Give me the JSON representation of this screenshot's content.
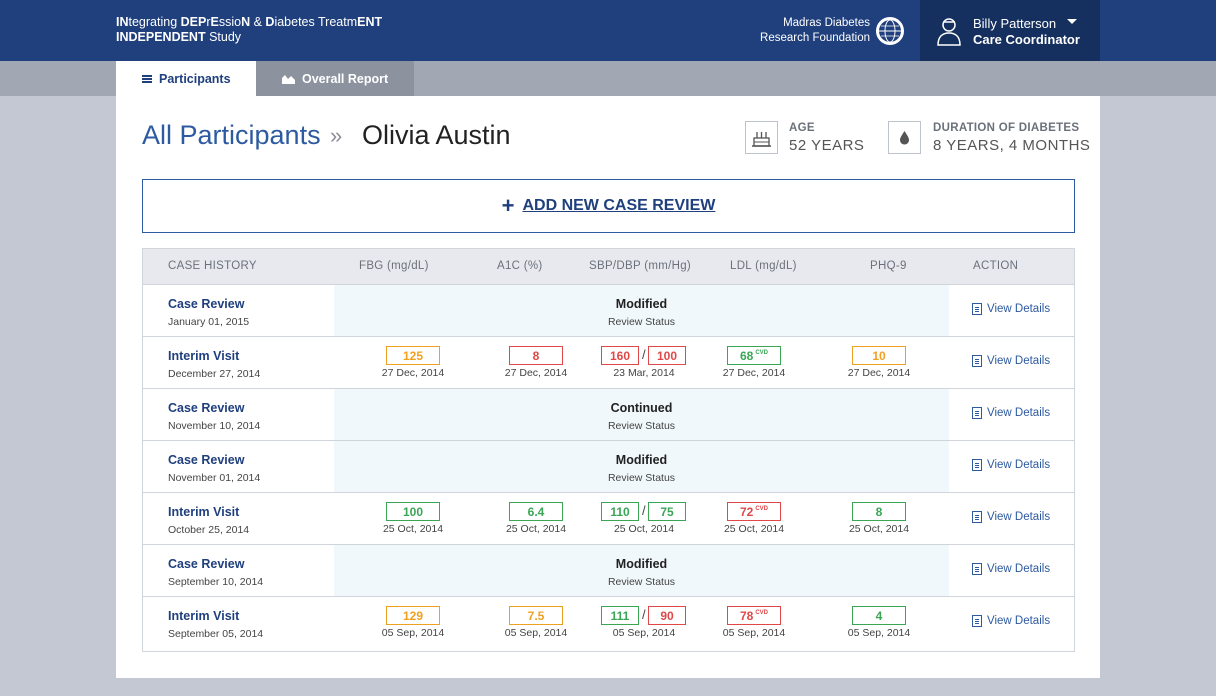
{
  "header": {
    "brand": {
      "line1_parts": [
        {
          "t": "IN",
          "b": true
        },
        {
          "t": "tegrating ",
          "b": false
        },
        {
          "t": "DEP",
          "b": true
        },
        {
          "t": "r",
          "b": false
        },
        {
          "t": "E",
          "b": true
        },
        {
          "t": "ssio",
          "b": false
        },
        {
          "t": "N",
          "b": true
        },
        {
          "t": " & ",
          "b": false
        },
        {
          "t": "D",
          "b": true
        },
        {
          "t": "iabetes Treatm",
          "b": false
        },
        {
          "t": "ENT",
          "b": true
        }
      ],
      "line2_bold": "INDEPENDENT",
      "line2_rest": " Study"
    },
    "org_line1": "Madras Diabetes",
    "org_line2": "Research Foundation",
    "user_name": "Billy Patterson",
    "user_role": "Care Coordinator"
  },
  "tabs": {
    "participants": "Participants",
    "overall_report": "Overall Report"
  },
  "breadcrumb": {
    "all": "All Participants",
    "sep": "»",
    "current": "Olivia Austin"
  },
  "stats": {
    "age_label": "AGE",
    "age_value": "52 YEARS",
    "duration_label": "DURATION OF DIABETES",
    "duration_value": "8 YEARS, 4 MONTHS"
  },
  "add_case_review": "ADD NEW CASE REVIEW",
  "table": {
    "headers": [
      "CASE HISTORY",
      "FBG (mg/dL)",
      "A1C (%)",
      "SBP/DBP (mm/Hg)",
      "LDL (mg/dL)",
      "PHQ-9",
      "ACTION"
    ],
    "view_label": "View Details",
    "rows": [
      {
        "type": "status",
        "title": "Case Review",
        "date": "January 01, 2015",
        "status": "Modified",
        "status_sub": "Review Status"
      },
      {
        "type": "metrics",
        "title": "Interim Visit",
        "date": "December 27, 2014",
        "fbg": {
          "v": "125",
          "c": "orange",
          "d": "27 Dec, 2014"
        },
        "a1c": {
          "v": "8",
          "c": "red",
          "d": "27 Dec, 2014"
        },
        "sbp": {
          "v": "160",
          "c": "red"
        },
        "dbp": {
          "v": "100",
          "c": "red"
        },
        "bp_d": "23 Mar, 2014",
        "ldl": {
          "v": "68",
          "c": "green",
          "sup": "CVD",
          "d": "27 Dec, 2014"
        },
        "phq": {
          "v": "10",
          "c": "orange",
          "d": "27 Dec, 2014"
        }
      },
      {
        "type": "status",
        "title": "Case Review",
        "date": "November 10, 2014",
        "status": "Continued",
        "status_sub": "Review Status"
      },
      {
        "type": "status",
        "title": "Case Review",
        "date": "November 01, 2014",
        "status": "Modified",
        "status_sub": "Review Status"
      },
      {
        "type": "metrics",
        "title": "Interim Visit",
        "date": "October 25, 2014",
        "fbg": {
          "v": "100",
          "c": "green",
          "d": "25 Oct, 2014"
        },
        "a1c": {
          "v": "6.4",
          "c": "green",
          "d": "25 Oct, 2014"
        },
        "sbp": {
          "v": "110",
          "c": "green"
        },
        "dbp": {
          "v": "75",
          "c": "green"
        },
        "bp_d": "25 Oct, 2014",
        "ldl": {
          "v": "72",
          "c": "red",
          "sup": "CVD",
          "d": "25 Oct, 2014"
        },
        "phq": {
          "v": "8",
          "c": "green",
          "d": "25 Oct, 2014"
        }
      },
      {
        "type": "status",
        "title": "Case Review",
        "date": "September 10, 2014",
        "status": "Modified",
        "status_sub": "Review Status"
      },
      {
        "type": "metrics",
        "title": "Interim Visit",
        "date": "September 05, 2014",
        "fbg": {
          "v": "129",
          "c": "orange",
          "d": "05 Sep, 2014"
        },
        "a1c": {
          "v": "7.5",
          "c": "orange",
          "d": "05 Sep, 2014"
        },
        "sbp": {
          "v": "111",
          "c": "green"
        },
        "dbp": {
          "v": "90",
          "c": "red"
        },
        "bp_d": "05 Sep, 2014",
        "ldl": {
          "v": "78",
          "c": "red",
          "sup": "CVD",
          "d": "05 Sep, 2014"
        },
        "phq": {
          "v": "4",
          "c": "green",
          "d": "05 Sep, 2014"
        }
      }
    ]
  },
  "colors": {
    "header_bg": "#1f3f7d",
    "user_box_bg": "#15305f",
    "accent_blue": "#2d5aa0",
    "green": "#3aa655",
    "orange": "#f0a020",
    "red": "#e04848"
  },
  "icons": {
    "menu": "menu-icon",
    "report": "chart-icon",
    "globe": "globe-logo-icon",
    "user": "user-icon",
    "age": "birthday-cake-icon",
    "duration": "drop-icon",
    "add": "plus-icon",
    "view": "document-icon"
  }
}
